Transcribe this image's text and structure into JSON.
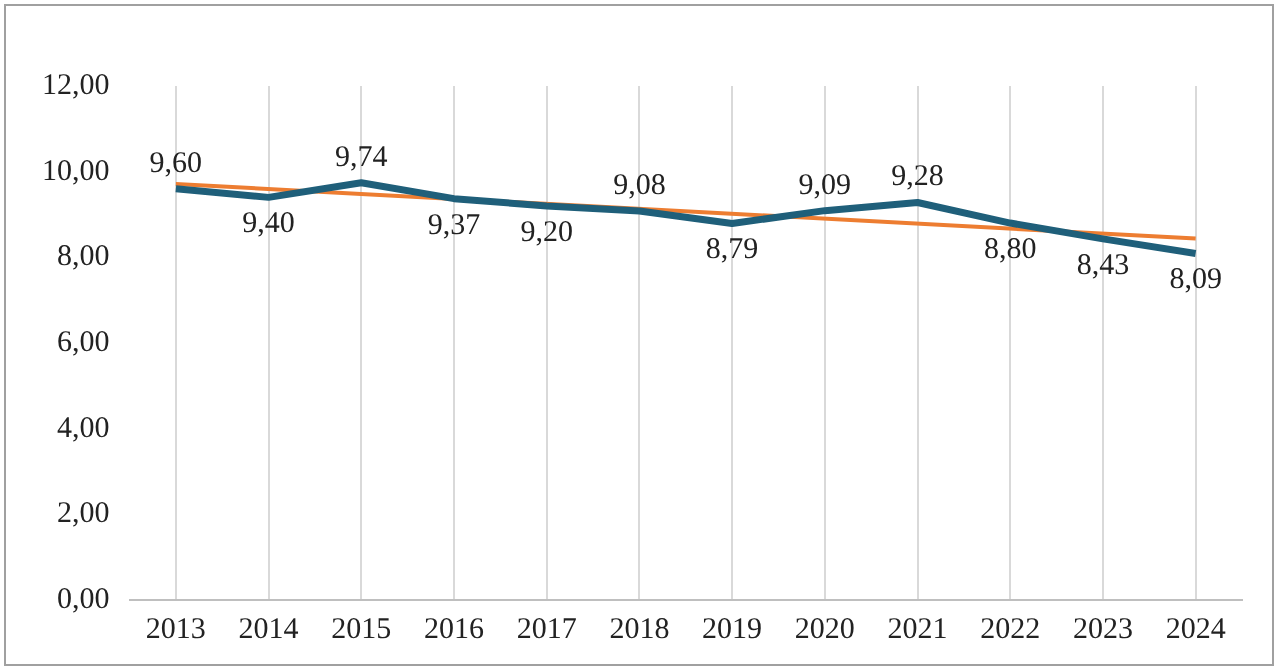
{
  "chart_data": {
    "type": "line",
    "categories": [
      "2013",
      "2014",
      "2015",
      "2016",
      "2017",
      "2018",
      "2019",
      "2020",
      "2021",
      "2022",
      "2023",
      "2024"
    ],
    "series": [
      {
        "color": "#1f5f7a",
        "values": [
          9.6,
          9.4,
          9.74,
          9.37,
          9.2,
          9.08,
          8.79,
          9.09,
          9.28,
          8.8,
          8.43,
          8.09
        ],
        "value_labels": [
          "9,60",
          "9,40",
          "9,74",
          "9,37",
          "9,20",
          "9,08",
          "8,79",
          "9,09",
          "9,28",
          "8,80",
          "8,43",
          "8,09"
        ]
      },
      {
        "color": "#ed7d31",
        "values": [
          9.71,
          null,
          null,
          null,
          null,
          null,
          null,
          null,
          null,
          null,
          null,
          8.44
        ]
      }
    ],
    "ylim": [
      0,
      12
    ],
    "yticks": [
      {
        "value": 0,
        "label": "0,00"
      },
      {
        "value": 2,
        "label": "2,00"
      },
      {
        "value": 4,
        "label": "4,00"
      },
      {
        "value": 6,
        "label": "6,00"
      },
      {
        "value": 8,
        "label": "8,00"
      },
      {
        "value": 10,
        "label": "10,00"
      },
      {
        "value": 12,
        "label": "12,00"
      }
    ],
    "grid": "x",
    "marker": "none",
    "line_style": "solid",
    "legend": false
  }
}
